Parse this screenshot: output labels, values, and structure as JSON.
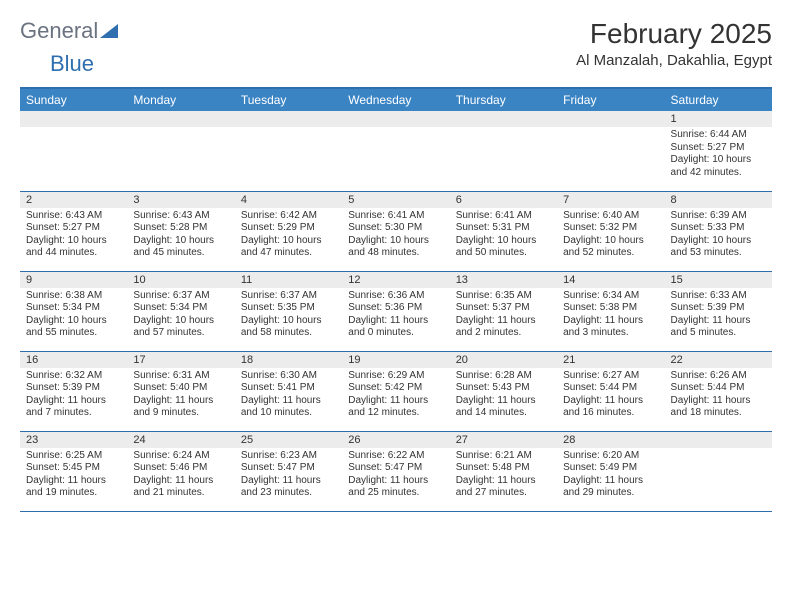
{
  "logo": {
    "word1": "General",
    "word2": "Blue"
  },
  "title": "February 2025",
  "location": "Al Manzalah, Dakahlia, Egypt",
  "colors": {
    "header_bg": "#3b84c4",
    "rule": "#2f6fb0",
    "daybar": "#ececec",
    "text": "#333333",
    "logo_gray": "#6b7280",
    "logo_blue": "#2f6fb0",
    "page_bg": "#ffffff"
  },
  "day_headers": [
    "Sunday",
    "Monday",
    "Tuesday",
    "Wednesday",
    "Thursday",
    "Friday",
    "Saturday"
  ],
  "weeks": [
    [
      {
        "n": "",
        "lines": []
      },
      {
        "n": "",
        "lines": []
      },
      {
        "n": "",
        "lines": []
      },
      {
        "n": "",
        "lines": []
      },
      {
        "n": "",
        "lines": []
      },
      {
        "n": "",
        "lines": []
      },
      {
        "n": "1",
        "lines": [
          "Sunrise: 6:44 AM",
          "Sunset: 5:27 PM",
          "Daylight: 10 hours",
          "and 42 minutes."
        ]
      }
    ],
    [
      {
        "n": "2",
        "lines": [
          "Sunrise: 6:43 AM",
          "Sunset: 5:27 PM",
          "Daylight: 10 hours",
          "and 44 minutes."
        ]
      },
      {
        "n": "3",
        "lines": [
          "Sunrise: 6:43 AM",
          "Sunset: 5:28 PM",
          "Daylight: 10 hours",
          "and 45 minutes."
        ]
      },
      {
        "n": "4",
        "lines": [
          "Sunrise: 6:42 AM",
          "Sunset: 5:29 PM",
          "Daylight: 10 hours",
          "and 47 minutes."
        ]
      },
      {
        "n": "5",
        "lines": [
          "Sunrise: 6:41 AM",
          "Sunset: 5:30 PM",
          "Daylight: 10 hours",
          "and 48 minutes."
        ]
      },
      {
        "n": "6",
        "lines": [
          "Sunrise: 6:41 AM",
          "Sunset: 5:31 PM",
          "Daylight: 10 hours",
          "and 50 minutes."
        ]
      },
      {
        "n": "7",
        "lines": [
          "Sunrise: 6:40 AM",
          "Sunset: 5:32 PM",
          "Daylight: 10 hours",
          "and 52 minutes."
        ]
      },
      {
        "n": "8",
        "lines": [
          "Sunrise: 6:39 AM",
          "Sunset: 5:33 PM",
          "Daylight: 10 hours",
          "and 53 minutes."
        ]
      }
    ],
    [
      {
        "n": "9",
        "lines": [
          "Sunrise: 6:38 AM",
          "Sunset: 5:34 PM",
          "Daylight: 10 hours",
          "and 55 minutes."
        ]
      },
      {
        "n": "10",
        "lines": [
          "Sunrise: 6:37 AM",
          "Sunset: 5:34 PM",
          "Daylight: 10 hours",
          "and 57 minutes."
        ]
      },
      {
        "n": "11",
        "lines": [
          "Sunrise: 6:37 AM",
          "Sunset: 5:35 PM",
          "Daylight: 10 hours",
          "and 58 minutes."
        ]
      },
      {
        "n": "12",
        "lines": [
          "Sunrise: 6:36 AM",
          "Sunset: 5:36 PM",
          "Daylight: 11 hours",
          "and 0 minutes."
        ]
      },
      {
        "n": "13",
        "lines": [
          "Sunrise: 6:35 AM",
          "Sunset: 5:37 PM",
          "Daylight: 11 hours",
          "and 2 minutes."
        ]
      },
      {
        "n": "14",
        "lines": [
          "Sunrise: 6:34 AM",
          "Sunset: 5:38 PM",
          "Daylight: 11 hours",
          "and 3 minutes."
        ]
      },
      {
        "n": "15",
        "lines": [
          "Sunrise: 6:33 AM",
          "Sunset: 5:39 PM",
          "Daylight: 11 hours",
          "and 5 minutes."
        ]
      }
    ],
    [
      {
        "n": "16",
        "lines": [
          "Sunrise: 6:32 AM",
          "Sunset: 5:39 PM",
          "Daylight: 11 hours",
          "and 7 minutes."
        ]
      },
      {
        "n": "17",
        "lines": [
          "Sunrise: 6:31 AM",
          "Sunset: 5:40 PM",
          "Daylight: 11 hours",
          "and 9 minutes."
        ]
      },
      {
        "n": "18",
        "lines": [
          "Sunrise: 6:30 AM",
          "Sunset: 5:41 PM",
          "Daylight: 11 hours",
          "and 10 minutes."
        ]
      },
      {
        "n": "19",
        "lines": [
          "Sunrise: 6:29 AM",
          "Sunset: 5:42 PM",
          "Daylight: 11 hours",
          "and 12 minutes."
        ]
      },
      {
        "n": "20",
        "lines": [
          "Sunrise: 6:28 AM",
          "Sunset: 5:43 PM",
          "Daylight: 11 hours",
          "and 14 minutes."
        ]
      },
      {
        "n": "21",
        "lines": [
          "Sunrise: 6:27 AM",
          "Sunset: 5:44 PM",
          "Daylight: 11 hours",
          "and 16 minutes."
        ]
      },
      {
        "n": "22",
        "lines": [
          "Sunrise: 6:26 AM",
          "Sunset: 5:44 PM",
          "Daylight: 11 hours",
          "and 18 minutes."
        ]
      }
    ],
    [
      {
        "n": "23",
        "lines": [
          "Sunrise: 6:25 AM",
          "Sunset: 5:45 PM",
          "Daylight: 11 hours",
          "and 19 minutes."
        ]
      },
      {
        "n": "24",
        "lines": [
          "Sunrise: 6:24 AM",
          "Sunset: 5:46 PM",
          "Daylight: 11 hours",
          "and 21 minutes."
        ]
      },
      {
        "n": "25",
        "lines": [
          "Sunrise: 6:23 AM",
          "Sunset: 5:47 PM",
          "Daylight: 11 hours",
          "and 23 minutes."
        ]
      },
      {
        "n": "26",
        "lines": [
          "Sunrise: 6:22 AM",
          "Sunset: 5:47 PM",
          "Daylight: 11 hours",
          "and 25 minutes."
        ]
      },
      {
        "n": "27",
        "lines": [
          "Sunrise: 6:21 AM",
          "Sunset: 5:48 PM",
          "Daylight: 11 hours",
          "and 27 minutes."
        ]
      },
      {
        "n": "28",
        "lines": [
          "Sunrise: 6:20 AM",
          "Sunset: 5:49 PM",
          "Daylight: 11 hours",
          "and 29 minutes."
        ]
      },
      {
        "n": "",
        "lines": []
      }
    ]
  ]
}
